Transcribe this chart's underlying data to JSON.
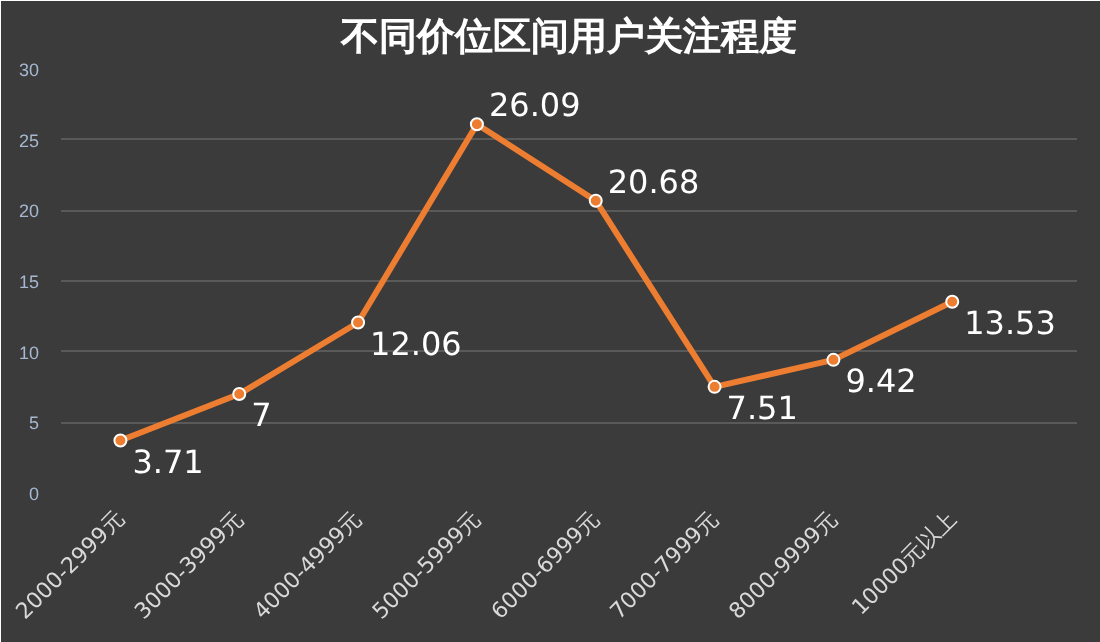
{
  "chart_data": {
    "type": "line",
    "title": "不同价位区间用户关注程度",
    "categories": [
      "2000-2999元",
      "3000-3999元",
      "4000-4999元",
      "5000-5999元",
      "6000-6999元",
      "7000-7999元",
      "8000-9999元",
      "10000元以上"
    ],
    "series": [
      {
        "color": "#ed7d31",
        "values": [
          3.71,
          7,
          12.06,
          26.09,
          20.68,
          7.51,
          9.42,
          13.53
        ]
      }
    ],
    "ylim": [
      0,
      30
    ],
    "yticks": [
      0,
      5,
      10,
      15,
      20,
      25,
      30
    ],
    "grid": "y",
    "marker": "circle",
    "line_style": "solid",
    "data_labels": true
  }
}
